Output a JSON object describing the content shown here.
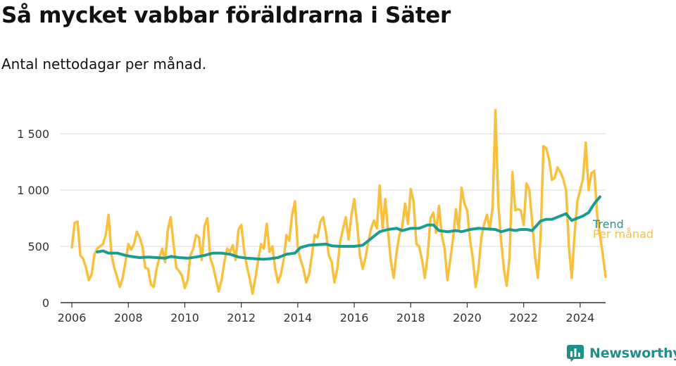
{
  "title": "Så mycket vabbar föräldrarna i Säter",
  "subtitle": "Antal nettodagar per månad.",
  "brand": {
    "name": "Newsworthy",
    "icon": "newsworthy-logo-icon"
  },
  "colors": {
    "per_month": "#f9c03e",
    "trend": "#1a9c93",
    "grid": "#d9d9d9",
    "axis": "#333333"
  },
  "chart_data": {
    "type": "line",
    "title": "Så mycket vabbar föräldrarna i Säter",
    "subtitle": "Antal nettodagar per månad.",
    "xlabel": "",
    "ylabel": "",
    "xlim": [
      2005.6,
      2024.9
    ],
    "ylim": [
      0,
      1750
    ],
    "x_ticks": [
      2006,
      2008,
      2010,
      2012,
      2014,
      2016,
      2018,
      2020,
      2022,
      2024
    ],
    "x_tick_labels": [
      "2006",
      "2008",
      "2010",
      "2012",
      "2014",
      "2016",
      "2018",
      "2020",
      "2022",
      "2024"
    ],
    "y_ticks": [
      0,
      500,
      1000,
      1500
    ],
    "y_tick_labels": [
      "0",
      "500",
      "1 000",
      "1 500"
    ],
    "grid": "horizontal",
    "legend": "end-of-line labels",
    "series": [
      {
        "name": "Per månad",
        "points": [
          [
            2006.0,
            490
          ],
          [
            2006.1,
            710
          ],
          [
            2006.2,
            720
          ],
          [
            2006.3,
            420
          ],
          [
            2006.4,
            390
          ],
          [
            2006.5,
            310
          ],
          [
            2006.6,
            200
          ],
          [
            2006.7,
            250
          ],
          [
            2006.8,
            430
          ],
          [
            2006.9,
            480
          ],
          [
            2007.0,
            500
          ],
          [
            2007.1,
            520
          ],
          [
            2007.2,
            600
          ],
          [
            2007.3,
            780
          ],
          [
            2007.4,
            430
          ],
          [
            2007.5,
            310
          ],
          [
            2007.6,
            230
          ],
          [
            2007.7,
            140
          ],
          [
            2007.8,
            220
          ],
          [
            2007.9,
            360
          ],
          [
            2008.0,
            520
          ],
          [
            2008.1,
            470
          ],
          [
            2008.2,
            520
          ],
          [
            2008.3,
            630
          ],
          [
            2008.4,
            580
          ],
          [
            2008.5,
            500
          ],
          [
            2008.6,
            310
          ],
          [
            2008.7,
            300
          ],
          [
            2008.8,
            160
          ],
          [
            2008.9,
            140
          ],
          [
            2009.0,
            300
          ],
          [
            2009.1,
            400
          ],
          [
            2009.2,
            480
          ],
          [
            2009.3,
            360
          ],
          [
            2009.4,
            650
          ],
          [
            2009.5,
            760
          ],
          [
            2009.6,
            520
          ],
          [
            2009.7,
            310
          ],
          [
            2009.8,
            280
          ],
          [
            2009.9,
            240
          ],
          [
            2010.0,
            130
          ],
          [
            2010.1,
            200
          ],
          [
            2010.2,
            420
          ],
          [
            2010.3,
            480
          ],
          [
            2010.4,
            600
          ],
          [
            2010.5,
            580
          ],
          [
            2010.6,
            380
          ],
          [
            2010.7,
            680
          ],
          [
            2010.8,
            750
          ],
          [
            2010.9,
            400
          ],
          [
            2011.0,
            320
          ],
          [
            2011.1,
            210
          ],
          [
            2011.2,
            100
          ],
          [
            2011.3,
            200
          ],
          [
            2011.4,
            360
          ],
          [
            2011.5,
            480
          ],
          [
            2011.6,
            450
          ],
          [
            2011.7,
            510
          ],
          [
            2011.8,
            380
          ],
          [
            2011.9,
            650
          ],
          [
            2012.0,
            690
          ],
          [
            2012.1,
            460
          ],
          [
            2012.2,
            320
          ],
          [
            2012.3,
            210
          ],
          [
            2012.4,
            80
          ],
          [
            2012.5,
            220
          ],
          [
            2012.6,
            380
          ],
          [
            2012.7,
            520
          ],
          [
            2012.8,
            480
          ],
          [
            2012.9,
            700
          ],
          [
            2013.0,
            450
          ],
          [
            2013.1,
            500
          ],
          [
            2013.2,
            300
          ],
          [
            2013.3,
            180
          ],
          [
            2013.4,
            250
          ],
          [
            2013.5,
            380
          ],
          [
            2013.6,
            600
          ],
          [
            2013.7,
            550
          ],
          [
            2013.8,
            780
          ],
          [
            2013.9,
            900
          ],
          [
            2014.0,
            480
          ],
          [
            2014.1,
            380
          ],
          [
            2014.2,
            300
          ],
          [
            2014.3,
            180
          ],
          [
            2014.4,
            250
          ],
          [
            2014.5,
            420
          ],
          [
            2014.6,
            600
          ],
          [
            2014.7,
            580
          ],
          [
            2014.8,
            720
          ],
          [
            2014.9,
            760
          ],
          [
            2015.0,
            620
          ],
          [
            2015.1,
            420
          ],
          [
            2015.2,
            360
          ],
          [
            2015.3,
            180
          ],
          [
            2015.4,
            300
          ],
          [
            2015.5,
            540
          ],
          [
            2015.6,
            650
          ],
          [
            2015.7,
            760
          ],
          [
            2015.8,
            560
          ],
          [
            2015.9,
            780
          ],
          [
            2016.0,
            920
          ],
          [
            2016.1,
            700
          ],
          [
            2016.2,
            420
          ],
          [
            2016.3,
            300
          ],
          [
            2016.4,
            400
          ],
          [
            2016.5,
            540
          ],
          [
            2016.6,
            660
          ],
          [
            2016.7,
            730
          ],
          [
            2016.8,
            660
          ],
          [
            2016.9,
            1040
          ],
          [
            2017.0,
            660
          ],
          [
            2017.1,
            920
          ],
          [
            2017.2,
            620
          ],
          [
            2017.3,
            360
          ],
          [
            2017.4,
            220
          ],
          [
            2017.5,
            450
          ],
          [
            2017.6,
            600
          ],
          [
            2017.7,
            680
          ],
          [
            2017.8,
            880
          ],
          [
            2017.9,
            700
          ],
          [
            2018.0,
            1010
          ],
          [
            2018.1,
            900
          ],
          [
            2018.2,
            520
          ],
          [
            2018.3,
            500
          ],
          [
            2018.4,
            380
          ],
          [
            2018.5,
            220
          ],
          [
            2018.6,
            420
          ],
          [
            2018.7,
            750
          ],
          [
            2018.8,
            800
          ],
          [
            2018.9,
            620
          ],
          [
            2019.0,
            860
          ],
          [
            2019.1,
            600
          ],
          [
            2019.2,
            480
          ],
          [
            2019.3,
            200
          ],
          [
            2019.4,
            380
          ],
          [
            2019.5,
            570
          ],
          [
            2019.6,
            830
          ],
          [
            2019.7,
            650
          ],
          [
            2019.8,
            1020
          ],
          [
            2019.9,
            880
          ],
          [
            2020.0,
            820
          ],
          [
            2020.1,
            560
          ],
          [
            2020.2,
            390
          ],
          [
            2020.3,
            140
          ],
          [
            2020.4,
            300
          ],
          [
            2020.5,
            580
          ],
          [
            2020.6,
            700
          ],
          [
            2020.7,
            780
          ],
          [
            2020.8,
            650
          ],
          [
            2020.9,
            850
          ],
          [
            2021.0,
            1710
          ],
          [
            2021.1,
            880
          ],
          [
            2021.2,
            550
          ],
          [
            2021.3,
            300
          ],
          [
            2021.4,
            150
          ],
          [
            2021.5,
            400
          ],
          [
            2021.6,
            1160
          ],
          [
            2021.7,
            820
          ],
          [
            2021.8,
            830
          ],
          [
            2021.9,
            820
          ],
          [
            2022.0,
            690
          ],
          [
            2022.1,
            1060
          ],
          [
            2022.2,
            1000
          ],
          [
            2022.3,
            720
          ],
          [
            2022.4,
            420
          ],
          [
            2022.5,
            220
          ],
          [
            2022.6,
            600
          ],
          [
            2022.7,
            1390
          ],
          [
            2022.8,
            1370
          ],
          [
            2022.9,
            1270
          ],
          [
            2023.0,
            1090
          ],
          [
            2023.1,
            1110
          ],
          [
            2023.2,
            1200
          ],
          [
            2023.3,
            1160
          ],
          [
            2023.4,
            1100
          ],
          [
            2023.5,
            1000
          ],
          [
            2023.6,
            500
          ],
          [
            2023.7,
            220
          ],
          [
            2023.8,
            600
          ],
          [
            2023.9,
            900
          ],
          [
            2024.0,
            1000
          ],
          [
            2024.1,
            1100
          ],
          [
            2024.2,
            1420
          ],
          [
            2024.3,
            1000
          ],
          [
            2024.4,
            1150
          ],
          [
            2024.5,
            1170
          ],
          [
            2024.6,
            780
          ],
          [
            2024.7,
            600
          ],
          [
            2024.8,
            430
          ],
          [
            2024.9,
            230
          ]
        ]
      },
      {
        "name": "Trend",
        "points": [
          [
            2006.9,
            450
          ],
          [
            2007.1,
            460
          ],
          [
            2007.3,
            440
          ],
          [
            2007.6,
            440
          ],
          [
            2007.9,
            420
          ],
          [
            2008.1,
            410
          ],
          [
            2008.4,
            400
          ],
          [
            2008.7,
            405
          ],
          [
            2009.0,
            400
          ],
          [
            2009.3,
            395
          ],
          [
            2009.5,
            410
          ],
          [
            2009.8,
            400
          ],
          [
            2010.1,
            395
          ],
          [
            2010.4,
            405
          ],
          [
            2010.7,
            420
          ],
          [
            2011.0,
            440
          ],
          [
            2011.3,
            440
          ],
          [
            2011.6,
            430
          ],
          [
            2011.9,
            405
          ],
          [
            2012.2,
            395
          ],
          [
            2012.5,
            390
          ],
          [
            2012.8,
            385
          ],
          [
            2013.0,
            390
          ],
          [
            2013.3,
            400
          ],
          [
            2013.6,
            430
          ],
          [
            2013.9,
            440
          ],
          [
            2014.1,
            490
          ],
          [
            2014.4,
            510
          ],
          [
            2014.7,
            515
          ],
          [
            2015.0,
            520
          ],
          [
            2015.2,
            505
          ],
          [
            2015.5,
            500
          ],
          [
            2015.8,
            500
          ],
          [
            2016.0,
            500
          ],
          [
            2016.3,
            510
          ],
          [
            2016.6,
            570
          ],
          [
            2016.9,
            630
          ],
          [
            2017.2,
            650
          ],
          [
            2017.5,
            660
          ],
          [
            2017.7,
            640
          ],
          [
            2018.0,
            660
          ],
          [
            2018.3,
            660
          ],
          [
            2018.6,
            690
          ],
          [
            2018.8,
            690
          ],
          [
            2019.0,
            640
          ],
          [
            2019.3,
            630
          ],
          [
            2019.6,
            640
          ],
          [
            2019.8,
            630
          ],
          [
            2020.1,
            650
          ],
          [
            2020.4,
            660
          ],
          [
            2020.7,
            655
          ],
          [
            2021.0,
            650
          ],
          [
            2021.2,
            630
          ],
          [
            2021.5,
            650
          ],
          [
            2021.7,
            640
          ],
          [
            2021.9,
            650
          ],
          [
            2022.1,
            650
          ],
          [
            2022.3,
            640
          ],
          [
            2022.6,
            725
          ],
          [
            2022.8,
            740
          ],
          [
            2023.0,
            740
          ],
          [
            2023.3,
            770
          ],
          [
            2023.5,
            790
          ],
          [
            2023.7,
            730
          ],
          [
            2023.9,
            750
          ],
          [
            2024.1,
            770
          ],
          [
            2024.3,
            800
          ],
          [
            2024.5,
            880
          ],
          [
            2024.7,
            940
          ]
        ]
      }
    ]
  }
}
